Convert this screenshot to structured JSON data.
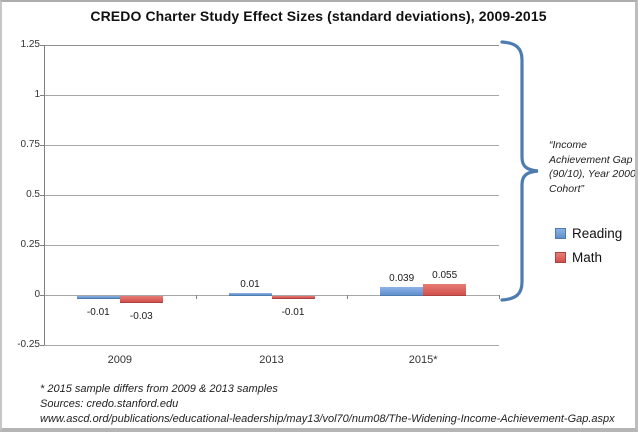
{
  "chart_data": {
    "type": "bar",
    "title": "CREDO Charter Study Effect Sizes (standard deviations), 2009-2015",
    "categories": [
      "2009",
      "2013",
      "2015*"
    ],
    "series": [
      {
        "name": "Reading",
        "values": [
          -0.01,
          0.01,
          0.039
        ],
        "labels": [
          "-0.01",
          "0.01",
          "0.039"
        ],
        "fill_top": "#8fb2e6",
        "fill_bottom": "#6090cc",
        "edge": "#4f7cb0"
      },
      {
        "name": "Math",
        "values": [
          -0.03,
          -0.01,
          0.055
        ],
        "labels": [
          "-0.03",
          "-0.01",
          "0.055"
        ],
        "fill_top": "#e67d76",
        "fill_bottom": "#d2504c",
        "edge": "#ab423f"
      }
    ],
    "ylim": [
      -0.25,
      1.25
    ],
    "y_tick_values": [
      1.25,
      1,
      0.75,
      0.5,
      0.25,
      0,
      -0.25
    ],
    "y_tick_labels": [
      "1.25",
      "1",
      "0.75",
      "0.5",
      "0.25",
      "0",
      "-0.25"
    ],
    "grid": true,
    "legend_position": "right"
  },
  "annotation": {
    "text": "“Income Achievement Gap (90/10), Year 2000 Cohort”"
  },
  "footer": {
    "lines": [
      "* 2015 sample differs from 2009 & 2013 samples",
      "Sources: credo.stanford.edu",
      "www.ascd.ord/publications/educational-leadership/may13/vol70/num08/The-Widening-Income-Achievement-Gap.aspx"
    ]
  },
  "colors": {
    "brace": "#4f7cb0",
    "gridline": "#a8a8a8",
    "axis": "#808080"
  }
}
